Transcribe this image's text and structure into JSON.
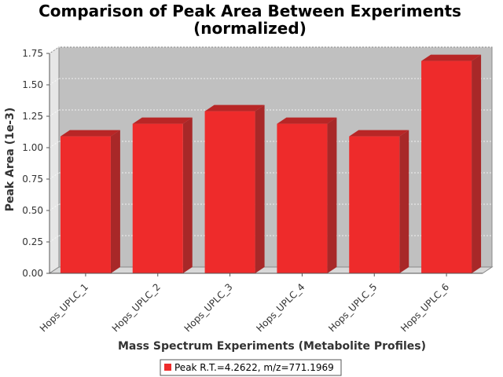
{
  "colors": {
    "bar_front": "#ee2b2b",
    "bar_top": "#b82626",
    "bar_side": "#a82828",
    "plot_back": "#c0c0c0",
    "plot_floor": "#d8d8d8",
    "plot_wall": "#e6e6e6"
  },
  "chart_data": {
    "type": "bar",
    "title_lines": [
      "Comparison of Peak Area Between Experiments",
      "(normalized)"
    ],
    "xlabel": "Mass Spectrum Experiments (Metabolite Profiles)",
    "ylabel": "Peak Area (1e-3)",
    "categories": [
      "Hops_UPLC_1",
      "Hops_UPLC_2",
      "Hops_UPLC_3",
      "Hops_UPLC_4",
      "Hops_UPLC_5",
      "Hops_UPLC_6"
    ],
    "series": [
      {
        "name": "Peak R.T.=4.2622, m/z=771.1969",
        "values": [
          1.09,
          1.19,
          1.29,
          1.19,
          1.09,
          1.69
        ]
      }
    ],
    "ylim": [
      0,
      1.75
    ],
    "yticks": [
      "0.00",
      "0.25",
      "0.50",
      "0.75",
      "1.00",
      "1.25",
      "1.50",
      "1.75"
    ],
    "grid": true,
    "legend_position": "bottom"
  }
}
